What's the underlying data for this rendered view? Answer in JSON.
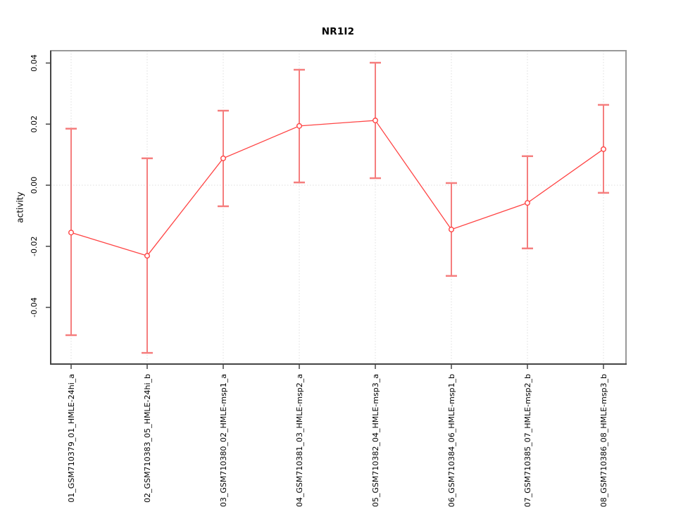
{
  "chart_data": {
    "type": "line",
    "title": "NR1I2",
    "xlabel": "",
    "ylabel": "activity",
    "legend_position": "none",
    "grid": {
      "vertical_at_each_category": true,
      "horizontal_at_zero": true,
      "style": "dotted"
    },
    "categories": [
      "01_GSM710379_01_HMLE-24hi_a",
      "02_GSM710383_05_HMLE-24hi_b",
      "03_GSM710380_02_HMLE-msp1_a",
      "04_GSM710381_03_HMLE-msp2_a",
      "05_GSM710382_04_HMLE-msp3_a",
      "06_GSM710384_06_HMLE-msp1_b",
      "07_GSM710385_07_HMLE-msp2_b",
      "08_GSM710386_08_HMLE-msp3_b"
    ],
    "series": [
      {
        "name": "activity",
        "marker": "open-circle",
        "values": [
          -0.0155,
          -0.0231,
          0.0088,
          0.0194,
          0.0212,
          -0.0145,
          -0.0058,
          0.0118
        ]
      }
    ],
    "error_bars": {
      "lower": [
        -0.0491,
        -0.0549,
        -0.0069,
        0.0009,
        0.0023,
        -0.0297,
        -0.0207,
        -0.0025
      ],
      "upper": [
        0.0185,
        0.0088,
        0.0244,
        0.0378,
        0.0401,
        0.0007,
        0.0095,
        0.0263
      ]
    },
    "yticks": [
      {
        "value": 0.04,
        "label": "0.04"
      },
      {
        "value": 0.02,
        "label": "0.02"
      },
      {
        "value": 0.0,
        "label": "0.00"
      },
      {
        "value": -0.02,
        "label": "-0.02"
      },
      {
        "value": -0.04,
        "label": "-0.04"
      }
    ],
    "ylim": [
      -0.0585,
      0.044
    ],
    "colors": {
      "series_line": "#ff4545",
      "marker_stroke": "#ff4545",
      "marker_fill": "#ffffff",
      "error_bar": "#f57e7e",
      "grid": "#dedede",
      "box_light": "#999999",
      "axis_dark": "#444444",
      "text": "#000000"
    }
  }
}
